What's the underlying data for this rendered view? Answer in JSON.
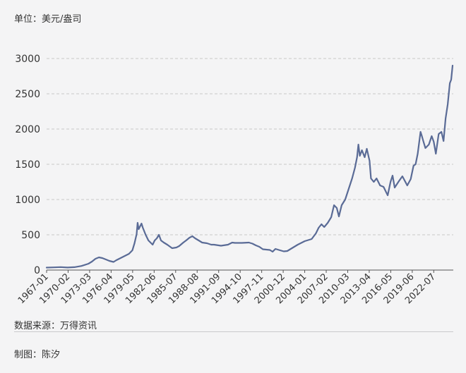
{
  "unit_label": "单位：美元/盎司",
  "source_label": "数据来源：万得资讯",
  "maker_label": "制图：陈汐",
  "colors": {
    "line": "#5a6b96",
    "grid": "#c8c8c8",
    "axis": "#555555",
    "background": "#f4f4f5"
  },
  "chart_data": {
    "type": "line",
    "title": "",
    "xlabel": "",
    "ylabel": "",
    "ylim": [
      0,
      3000
    ],
    "yticks": [
      0,
      500,
      1000,
      1500,
      2000,
      2500,
      3000
    ],
    "xlim": [
      1967.0,
      2025.3
    ],
    "grid": "horizontal dashed",
    "x_tick_labels": [
      "1967-01",
      "1970-02",
      "1973-03",
      "1976-04",
      "1979-05",
      "1982-06",
      "1985-07",
      "1988-08",
      "1991-09",
      "1994-10",
      "1997-11",
      "2000-12",
      "2004-01",
      "2007-02",
      "2010-03",
      "2013-04",
      "2016-05",
      "2019-06",
      "2022-07"
    ],
    "series": [
      {
        "x": [
          1967.0,
          1968.0,
          1969.0,
          1970.0,
          1971.0,
          1972.0,
          1973.0,
          1973.5,
          1974.0,
          1974.5,
          1975.0,
          1975.5,
          1976.0,
          1976.6,
          1977.0,
          1978.0,
          1978.8,
          1979.3,
          1979.6,
          1979.9,
          1980.05,
          1980.2,
          1980.4,
          1980.6,
          1980.8,
          1981.2,
          1981.6,
          1982.2,
          1982.5,
          1982.8,
          1983.1,
          1983.4,
          1983.8,
          1984.3,
          1985.0,
          1985.6,
          1986.0,
          1986.6,
          1987.0,
          1987.5,
          1987.9,
          1988.3,
          1988.8,
          1989.3,
          1990.0,
          1990.6,
          1991.0,
          1992.0,
          1993.0,
          1993.6,
          1994.0,
          1995.0,
          1996.0,
          1996.5,
          1997.0,
          1997.5,
          1998.0,
          1999.0,
          1999.4,
          1999.8,
          2000.3,
          2001.0,
          2001.5,
          2002.0,
          2003.0,
          2004.0,
          2005.0,
          2005.6,
          2006.0,
          2006.4,
          2006.8,
          2007.3,
          2007.8,
          2008.2,
          2008.6,
          2008.9,
          2009.3,
          2009.8,
          2010.3,
          2010.8,
          2011.2,
          2011.5,
          2011.7,
          2011.9,
          2012.2,
          2012.6,
          2012.9,
          2013.3,
          2013.5,
          2013.9,
          2014.3,
          2014.8,
          2015.3,
          2015.9,
          2016.3,
          2016.6,
          2016.9,
          2017.5,
          2018.0,
          2018.7,
          2019.2,
          2019.6,
          2019.9,
          2020.2,
          2020.6,
          2020.8,
          2021.0,
          2021.3,
          2021.8,
          2022.2,
          2022.5,
          2022.8,
          2023.2,
          2023.6,
          2023.9,
          2024.2,
          2024.5,
          2024.8,
          2025.0,
          2025.2
        ],
        "y": [
          35,
          38,
          42,
          36,
          41,
          58,
          90,
          120,
          160,
          180,
          170,
          150,
          130,
          115,
          140,
          190,
          230,
          280,
          380,
          510,
          670,
          580,
          620,
          660,
          600,
          500,
          420,
          360,
          420,
          450,
          500,
          420,
          390,
          360,
          310,
          320,
          340,
          390,
          420,
          460,
          480,
          450,
          420,
          390,
          380,
          360,
          360,
          345,
          360,
          390,
          385,
          385,
          390,
          375,
          350,
          330,
          295,
          285,
          260,
          300,
          285,
          265,
          270,
          300,
          360,
          410,
          440,
          520,
          600,
          650,
          610,
          670,
          750,
          920,
          880,
          760,
          920,
          1000,
          1150,
          1300,
          1450,
          1600,
          1780,
          1620,
          1700,
          1600,
          1720,
          1550,
          1300,
          1250,
          1300,
          1200,
          1180,
          1060,
          1250,
          1340,
          1170,
          1260,
          1330,
          1200,
          1290,
          1480,
          1500,
          1650,
          1960,
          1900,
          1830,
          1730,
          1780,
          1900,
          1820,
          1650,
          1930,
          1960,
          1830,
          2150,
          2350,
          2650,
          2700,
          2900
        ]
      }
    ]
  }
}
